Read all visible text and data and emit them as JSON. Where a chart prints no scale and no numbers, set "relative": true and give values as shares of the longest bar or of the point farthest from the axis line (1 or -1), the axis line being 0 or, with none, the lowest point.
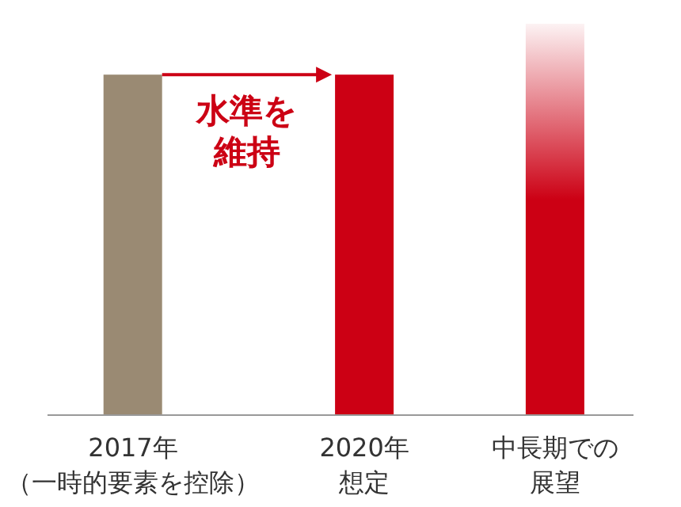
{
  "chart_data": {
    "type": "bar",
    "relative": true,
    "categories": [
      "2017年（一時的要素を控除）",
      "2020年想定",
      "中長期での展望"
    ],
    "values": [
      0.87,
      0.87,
      1
    ],
    "colors": [
      "#9a8a73",
      "#cc0014",
      "#cc0014"
    ],
    "annotations": [
      "水準を維持"
    ]
  }
}
